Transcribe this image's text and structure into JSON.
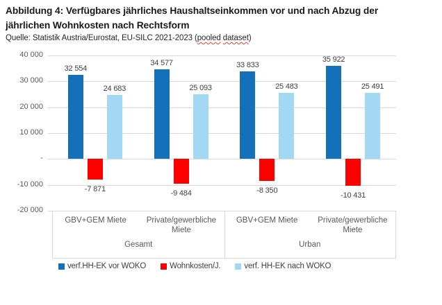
{
  "page": {
    "title_lines": [
      "Abbildung 4: Verfügbares jährliches Haushaltseinkommen vor und nach Abzug der",
      "jährlichen Wohnkosten nach Rechtsform"
    ],
    "source": {
      "before": "Quelle: Statistik Austria/Eurostat, EU-SILC 2021-2023 (",
      "word1": "pooled",
      "word2": "dataset",
      "after": ")"
    }
  },
  "chart_data": {
    "type": "bar",
    "title": "Verfügbares jährliches Haushaltseinkommen vor und nach Abzug der jährlichen Wohnkosten nach Rechtsform",
    "source": "Statistik Austria/Eurostat, EU-SILC 2021-2023 (pooled dataset)",
    "categories_level1": [
      "GBV+GEM Miete",
      "Private/gewerbliche Miete",
      "GBV+GEM Miete",
      "Private/gewerbliche Miete"
    ],
    "categories_level2": [
      "Gesamt",
      "Urban"
    ],
    "series": [
      {
        "name": "verf.HH-EK vor WOKO",
        "color": "#1470b8",
        "values": [
          32554,
          34577,
          33833,
          35922
        ],
        "labels": [
          "32 554",
          "34 577",
          "33 833",
          "35 922"
        ]
      },
      {
        "name": "Wohnkosten/J.",
        "color": "#fe0000",
        "values": [
          -7871,
          -9484,
          -8350,
          -10431
        ],
        "labels": [
          "-7 871",
          "-9 484",
          "-8 350",
          "-10 431"
        ]
      },
      {
        "name": "verf. HH-EK nach WOKO",
        "color": "#a3d8f3",
        "values": [
          24683,
          25093,
          25483,
          25491
        ],
        "labels": [
          "24 683",
          "25 093",
          "25 483",
          "25 491"
        ]
      }
    ],
    "y_axis": {
      "min": -20000,
      "max": 40000,
      "ticks": [
        {
          "value": 40000,
          "label": "40 000"
        },
        {
          "value": 30000,
          "label": "30 000"
        },
        {
          "value": 20000,
          "label": "20 000"
        },
        {
          "value": 10000,
          "label": "10 000"
        },
        {
          "value": 0,
          "label": "-"
        },
        {
          "value": -10000,
          "label": "-10 000"
        },
        {
          "value": -20000,
          "label": "-20 000"
        }
      ]
    },
    "grid": true,
    "legend_position": "bottom"
  },
  "colors": {
    "grid": "#d9d9d9",
    "box_border": "#d9d9d9",
    "axis_text": "#595959",
    "data_label": "#404040"
  }
}
